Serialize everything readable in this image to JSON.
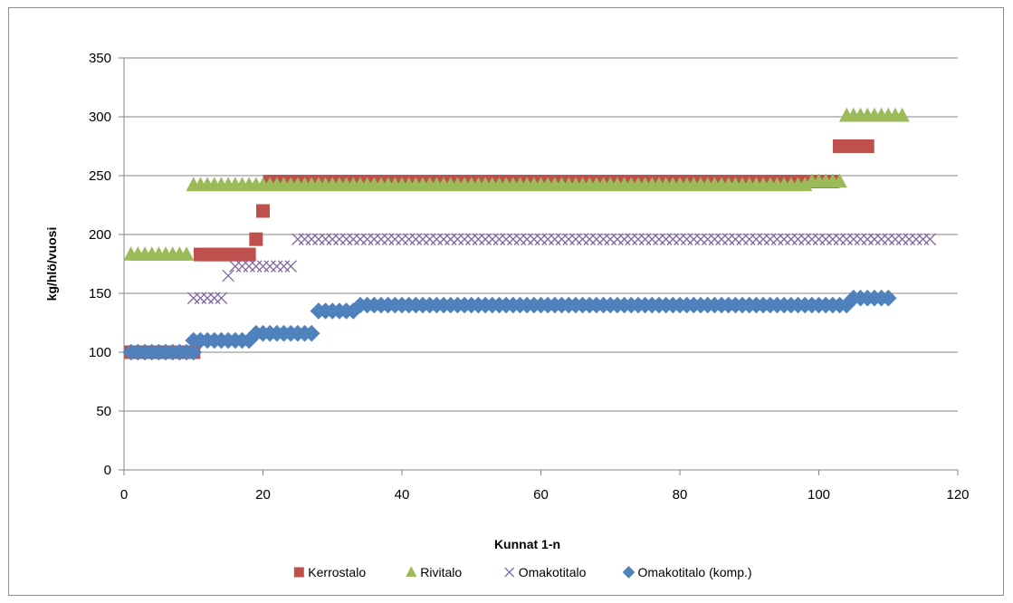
{
  "chart_data": {
    "type": "scatter",
    "title": "",
    "xlabel": "Kunnat 1-n",
    "ylabel": "kg/hlö/vuosi",
    "xlim": [
      0,
      120
    ],
    "ylim": [
      0,
      350
    ],
    "x_ticks": [
      0,
      20,
      40,
      60,
      80,
      100,
      120
    ],
    "y_ticks": [
      0,
      50,
      100,
      150,
      200,
      250,
      300,
      350
    ],
    "grid": "horizontal",
    "legend_position": "bottom",
    "series": [
      {
        "name": "Kerrostalo",
        "marker": "square",
        "color": "#C0504D",
        "segments": [
          {
            "x_from": 1,
            "x_to": 10,
            "y": 100
          },
          {
            "x_from": 11,
            "x_to": 18,
            "y": 183
          },
          {
            "x": 19,
            "y": 196
          },
          {
            "x": 20,
            "y": 220
          },
          {
            "x_from": 21,
            "x_to": 102,
            "y": 245
          },
          {
            "x_from": 103,
            "x_to": 107,
            "y": 275
          }
        ]
      },
      {
        "name": "Rivitalo",
        "marker": "triangle",
        "color": "#9BBB59",
        "segments": [
          {
            "x_from": 1,
            "x_to": 9,
            "y": 183
          },
          {
            "x_from": 10,
            "x_to": 98,
            "y": 242
          },
          {
            "x_from": 99,
            "x_to": 103,
            "y": 245
          },
          {
            "x_from": 104,
            "x_to": 112,
            "y": 301
          }
        ]
      },
      {
        "name": "Omakotitalo",
        "marker": "x",
        "color": "#8064A2",
        "segments": [
          {
            "x_from": 10,
            "x_to": 14,
            "y": 146
          },
          {
            "x": 15,
            "y": 165
          },
          {
            "x_from": 16,
            "x_to": 24,
            "y": 173
          },
          {
            "x_from": 25,
            "x_to": 116,
            "y": 196
          }
        ]
      },
      {
        "name": "Omakotitalo (komp.)",
        "marker": "diamond",
        "color": "#4F81BD",
        "segments": [
          {
            "x_from": 1,
            "x_to": 10,
            "y": 100
          },
          {
            "x_from": 10,
            "x_to": 18,
            "y": 110
          },
          {
            "x_from": 19,
            "x_to": 27,
            "y": 116
          },
          {
            "x_from": 28,
            "x_to": 33,
            "y": 135
          },
          {
            "x_from": 34,
            "x_to": 104,
            "y": 140
          },
          {
            "x_from": 105,
            "x_to": 110,
            "y": 146
          }
        ]
      }
    ]
  }
}
